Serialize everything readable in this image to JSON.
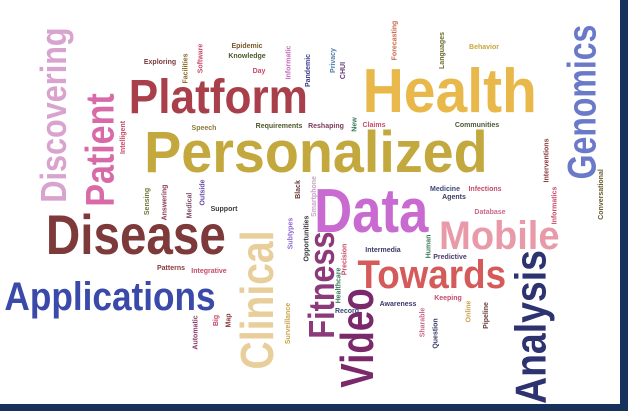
{
  "words": [
    {
      "text": "Discovering",
      "color": "#d8a4cf"
    },
    {
      "text": "Patient",
      "color": "#d86aa8"
    },
    {
      "text": "Platform",
      "color": "#a93f4a"
    },
    {
      "text": "Health",
      "color": "#e8b84a"
    },
    {
      "text": "Personalized",
      "color": "#c3a83e"
    },
    {
      "text": "Genomics",
      "color": "#6a7ac8"
    },
    {
      "text": "Disease",
      "color": "#7e3a3a"
    },
    {
      "text": "Data",
      "color": "#c96ad0"
    },
    {
      "text": "Mobile",
      "color": "#e89aa8"
    },
    {
      "text": "Clinical",
      "color": "#e8ce9a"
    },
    {
      "text": "Fitness",
      "color": "#8c3a7a"
    },
    {
      "text": "Towards",
      "color": "#d55a5a"
    },
    {
      "text": "Applications",
      "color": "#3b4aa8"
    },
    {
      "text": "Video",
      "color": "#7a2a6a"
    },
    {
      "text": "Analysis",
      "color": "#2d3270"
    },
    {
      "text": "Epidemic",
      "color": "#7a5a2a"
    },
    {
      "text": "Knowledge",
      "color": "#4a5a2a"
    },
    {
      "text": "Informatic",
      "color": "#c86ab8"
    },
    {
      "text": "Facilities",
      "color": "#8a6a2a"
    },
    {
      "text": "Software",
      "color": "#c84a6a"
    },
    {
      "text": "Exploring",
      "color": "#7a3a3a"
    },
    {
      "text": "Day",
      "color": "#c84a6a"
    },
    {
      "text": "Pandemic",
      "color": "#3a3a8a"
    },
    {
      "text": "Privacy",
      "color": "#4a7aa8"
    },
    {
      "text": "CHUI",
      "color": "#6a3a7a"
    },
    {
      "text": "Forecasting",
      "color": "#c86a4a"
    },
    {
      "text": "Languages",
      "color": "#6a6a2a"
    },
    {
      "text": "Behavior",
      "color": "#c8a43a"
    },
    {
      "text": "Speech",
      "color": "#8a7a3a"
    },
    {
      "text": "Requirements",
      "color": "#4a5a2a"
    },
    {
      "text": "Reshaping",
      "color": "#7a3a5a"
    },
    {
      "text": "New",
      "color": "#3a7a5a"
    },
    {
      "text": "Claims",
      "color": "#c84a6a"
    },
    {
      "text": "Communities",
      "color": "#4a5a3a"
    },
    {
      "text": "Intelligent",
      "color": "#c84a6a"
    },
    {
      "text": "Interventions",
      "color": "#8a3a3a"
    },
    {
      "text": "Informatics",
      "color": "#c84a6a"
    },
    {
      "text": "Conversational",
      "color": "#6a5a2a"
    },
    {
      "text": "Sensing",
      "color": "#6a7a3a"
    },
    {
      "text": "Answering",
      "color": "#8a3a5a"
    },
    {
      "text": "Medical",
      "color": "#7a4a6a"
    },
    {
      "text": "Outside",
      "color": "#6a4aa8"
    },
    {
      "text": "Support",
      "color": "#3a3a3a"
    },
    {
      "text": "Black",
      "color": "#6a3a3a"
    },
    {
      "text": "Smartphone",
      "color": "#c8a4c8"
    },
    {
      "text": "Medicine",
      "color": "#3a4a7a"
    },
    {
      "text": "Infections",
      "color": "#c84a6a"
    },
    {
      "text": "Agents",
      "color": "#3a3a6a"
    },
    {
      "text": "Database",
      "color": "#c86a8a"
    },
    {
      "text": "Subtypes",
      "color": "#8a6ad0"
    },
    {
      "text": "Opportunities",
      "color": "#3a3a3a"
    },
    {
      "text": "Intermedia",
      "color": "#3a3a6a"
    },
    {
      "text": "Human",
      "color": "#3a7a5a"
    },
    {
      "text": "Patterns",
      "color": "#8a3a3a"
    },
    {
      "text": "Integrative",
      "color": "#c84a6a"
    },
    {
      "text": "Predictive",
      "color": "#4a3a6a"
    },
    {
      "text": "Precision",
      "color": "#c84a6a"
    },
    {
      "text": "Healthcare",
      "color": "#3a7a5a"
    },
    {
      "text": "Record",
      "color": "#3a4a7a"
    },
    {
      "text": "Big",
      "color": "#c84a6a"
    },
    {
      "text": "Map",
      "color": "#8a3a3a"
    },
    {
      "text": "Automatic",
      "color": "#8a3a6a"
    },
    {
      "text": "Surveillance",
      "color": "#c8a44a"
    },
    {
      "text": "Awareness",
      "color": "#3a3a6a"
    },
    {
      "text": "Keeping",
      "color": "#c84a6a"
    },
    {
      "text": "Sharable",
      "color": "#c86a8a"
    },
    {
      "text": "Question",
      "color": "#3a3a6a"
    },
    {
      "text": "Online",
      "color": "#c8a44a"
    },
    {
      "text": "Pipeline",
      "color": "#6a3a3a"
    }
  ]
}
